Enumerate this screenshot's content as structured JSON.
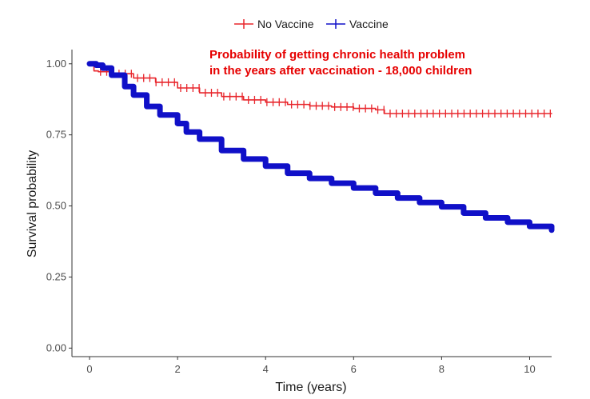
{
  "chart_data": {
    "type": "line",
    "title": "",
    "xlabel": "Time (years)",
    "ylabel": "Survival probability",
    "xlim": [
      -0.4,
      10.5
    ],
    "ylim": [
      -0.03,
      1.05
    ],
    "x_ticks": [
      0,
      2,
      4,
      6,
      8,
      10
    ],
    "x_tick_labels": [
      "0",
      "2",
      "4",
      "6",
      "8",
      "10"
    ],
    "y_ticks": [
      0,
      0.25,
      0.5,
      0.75,
      1.0
    ],
    "y_tick_labels": [
      "0.00",
      "0.25",
      "0.50",
      "0.75",
      "1.00"
    ],
    "grid": false,
    "legend_position": "top",
    "annotation": {
      "lines": [
        "Probability of getting chronic health problem",
        "in the years after vaccination - 18,000 children"
      ],
      "color": "#e60000"
    },
    "series": [
      {
        "name": "No Vaccine",
        "color": "#e8262c",
        "censor_marks": true,
        "x": [
          0.0,
          0.1,
          0.2,
          0.5,
          1.0,
          1.5,
          2.0,
          2.5,
          3.0,
          3.5,
          4.0,
          4.5,
          5.0,
          5.5,
          6.0,
          6.5,
          6.7,
          7.0,
          8.0,
          9.0,
          10.0,
          10.5
        ],
        "y": [
          1.0,
          0.975,
          0.972,
          0.965,
          0.95,
          0.935,
          0.915,
          0.898,
          0.885,
          0.873,
          0.865,
          0.857,
          0.852,
          0.848,
          0.843,
          0.838,
          0.825,
          0.825,
          0.825,
          0.825,
          0.825,
          0.825
        ]
      },
      {
        "name": "Vaccine",
        "color": "#1010c8",
        "censor_marks": false,
        "x": [
          0.0,
          0.15,
          0.3,
          0.5,
          0.8,
          1.0,
          1.3,
          1.6,
          2.0,
          2.2,
          2.5,
          3.0,
          3.5,
          4.0,
          4.5,
          5.0,
          5.5,
          6.0,
          6.5,
          7.0,
          7.5,
          8.0,
          8.5,
          9.0,
          9.5,
          10.0,
          10.5
        ],
        "y": [
          1.0,
          0.995,
          0.985,
          0.96,
          0.92,
          0.89,
          0.85,
          0.82,
          0.79,
          0.76,
          0.735,
          0.695,
          0.665,
          0.64,
          0.615,
          0.597,
          0.58,
          0.563,
          0.545,
          0.528,
          0.512,
          0.497,
          0.475,
          0.458,
          0.443,
          0.428,
          0.415
        ]
      }
    ]
  }
}
